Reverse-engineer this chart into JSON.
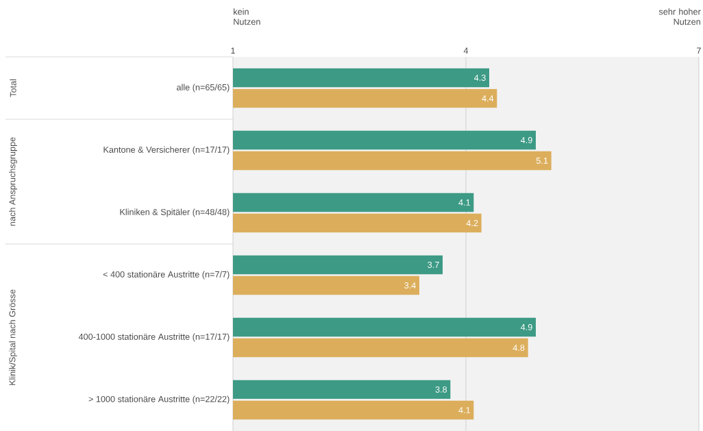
{
  "chart_data": {
    "type": "bar",
    "orientation": "horizontal",
    "categories": [
      "alle (n=65/65)",
      "Kantone & Versicherer (n=17/17)",
      "Kliniken & Spitäler (n=48/48)",
      "< 400 stationäre Austritte (n=7/7)",
      "400-1000 stationäre Austritte (n=17/17)",
      "> 1000 stationäre Austritte (n=22/22)"
    ],
    "series": [
      {
        "color": "#3d9a85",
        "values": [
          4.3,
          4.9,
          4.1,
          3.7,
          4.9,
          3.8
        ]
      },
      {
        "color": "#dcae5c",
        "values": [
          4.4,
          5.1,
          4.2,
          3.4,
          4.8,
          4.1
        ]
      }
    ],
    "xlim": [
      1,
      7
    ],
    "xticks": [
      1,
      4,
      7
    ],
    "grid": "x",
    "data_labels": true,
    "annotations": [
      "Total",
      "nach Anspruchsgruppe",
      "Klinik/Spital nach Grösse",
      "kein Nutzen",
      "sehr hoher Nutzen"
    ]
  }
}
